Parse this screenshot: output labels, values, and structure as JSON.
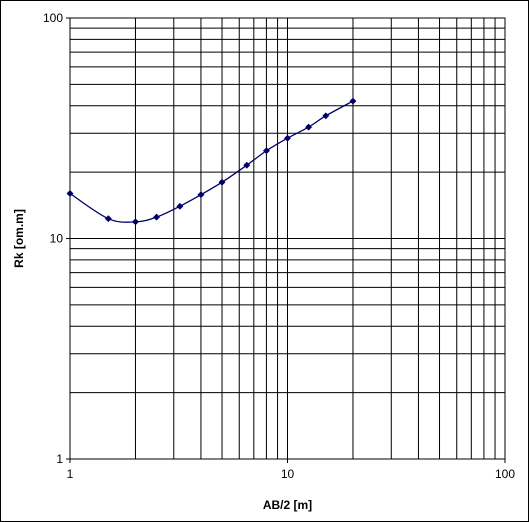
{
  "chart_data": {
    "type": "line",
    "title": "",
    "xlabel": "AB/2 [m]",
    "ylabel": "Rk [om.m]",
    "x_scale": "log",
    "y_scale": "log",
    "xlim": [
      1,
      100
    ],
    "ylim": [
      1,
      100
    ],
    "grid": true,
    "x_tick_labels": [
      "1",
      "10",
      "100"
    ],
    "y_tick_labels": [
      "1",
      "10",
      "100"
    ],
    "series": [
      {
        "x": [
          1,
          1.5,
          2,
          2.5,
          3.2,
          4,
          5,
          6.5,
          8,
          10,
          12.5,
          15,
          20
        ],
        "y": [
          16,
          12.3,
          11.9,
          12.5,
          14,
          15.8,
          18,
          21.5,
          25,
          28.5,
          32,
          36,
          42
        ],
        "line_color": "#000066",
        "marker": "diamond",
        "smooth": true
      }
    ]
  }
}
